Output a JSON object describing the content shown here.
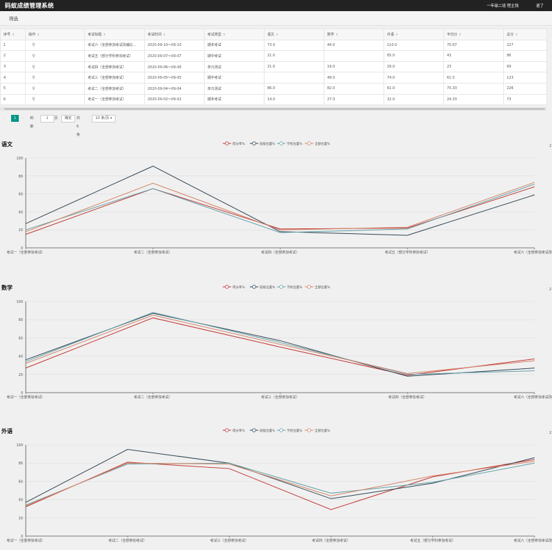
{
  "header": {
    "title": "码蚁成绩管理系统",
    "user": "一年级二班 程主钱",
    "logout": "退了"
  },
  "filter": {
    "label": "筛选"
  },
  "table": {
    "columns": [
      "序号",
      "操作",
      "考试标题",
      "考试时间",
      "考试类型",
      "语文",
      "数学",
      "外语",
      "平均分",
      "总分"
    ],
    "rows": [
      [
        "1",
        "",
        "考试六（全部参加考试改编比...",
        "2020-09-10～09-10",
        "期末考试",
        "73.0",
        "44.0",
        "110.0",
        "75.67",
        "227"
      ],
      [
        "2",
        "",
        "考试五（部分学科参加考试）",
        "2020-09-07～09-07",
        "期中考试",
        "21.0",
        "",
        "65.0",
        "43",
        "86"
      ],
      [
        "3",
        "",
        "考试四（全部参加考试）",
        "2020-09-06～09-06",
        "单元测试",
        "21.0",
        "19.0",
        "29.0",
        "23",
        "69"
      ],
      [
        "4",
        "",
        "考试三（全部参加考试）",
        "2020-09-05～09-05",
        "期中考试",
        "",
        "49.0",
        "74.0",
        "61.5",
        "123"
      ],
      [
        "5",
        "",
        "考试二（全部参加考试）",
        "2020-09-04～09-04",
        "单元测试",
        "86.0",
        "82.0",
        "61.0",
        "75.33",
        "226"
      ],
      [
        "6",
        "",
        "考试一（全部参加考试）",
        "2020-09-02～09-02",
        "期末考试",
        "14.0",
        "27.0",
        "32.0",
        "24.33",
        "73"
      ]
    ]
  },
  "pager": {
    "prev": "‹",
    "page": "1",
    "next": "›",
    "goto_label": "到第",
    "goto_value": "1",
    "page_unit": "页",
    "confirm": "确定",
    "total": "共 6 条",
    "page_size": "10 条/页"
  },
  "colors": {
    "score": "#c23531",
    "class": "#2f4554",
    "school": "#61a0a8",
    "all": "#d48265"
  },
  "charts_meta": {
    "corner_label": "2"
  },
  "chart_data": [
    {
      "type": "line",
      "title": "语文",
      "categories": [
        "考试一（全部参加考试）",
        "考试二（全部参加考试）",
        "考试四（全部参加考试）",
        "考试五（部分学科参加考试）",
        "考试六（全部参加考试改编比"
      ],
      "ylim": [
        0,
        100
      ],
      "yticks": [
        0,
        20,
        40,
        60,
        80,
        100
      ],
      "series": [
        {
          "name": "得分率%",
          "color": "#c23531",
          "values": [
            15,
            66,
            21,
            22,
            68
          ]
        },
        {
          "name": "班级位置%",
          "color": "#2f4554",
          "values": [
            27,
            91,
            18,
            14,
            59
          ]
        },
        {
          "name": "学校位置%",
          "color": "#61a0a8",
          "values": [
            20,
            66,
            17,
            21,
            71
          ]
        },
        {
          "name": "全部位置%",
          "color": "#d48265",
          "values": [
            18,
            72,
            20,
            23,
            73
          ]
        }
      ]
    },
    {
      "type": "line",
      "title": "数学",
      "categories": [
        "考试一（全部参加考试）",
        "考试二（全部参加考试）",
        "考试三（全部参加考试）",
        "考试四（全部参加考试）",
        "考试六（全部参加考试改编比"
      ],
      "ylim": [
        0,
        100
      ],
      "yticks": [
        0,
        20,
        40,
        60,
        80,
        100
      ],
      "series": [
        {
          "name": "得分率%",
          "color": "#c23531",
          "values": [
            27,
            82,
            50,
            19,
            37
          ]
        },
        {
          "name": "班级位置%",
          "color": "#2f4554",
          "values": [
            36,
            87,
            57,
            18,
            27
          ]
        },
        {
          "name": "学校位置%",
          "color": "#61a0a8",
          "values": [
            34,
            88,
            55,
            20,
            24
          ]
        },
        {
          "name": "全部位置%",
          "color": "#d48265",
          "values": [
            32,
            85,
            53,
            21,
            35
          ]
        }
      ]
    },
    {
      "type": "line",
      "title": "外语",
      "categories": [
        "考试一（全部参加考试）",
        "考试二（全部参加考试）",
        "考试三（全部参加考试）",
        "考试四（全部参加考试）",
        "考试五（部分学科参加考试）",
        "考试六（全部参加考试改编比"
      ],
      "ylim": [
        0,
        100
      ],
      "yticks": [
        0,
        20,
        40,
        60,
        80,
        100
      ],
      "series": [
        {
          "name": "得分率%",
          "color": "#c23531",
          "values": [
            32,
            81,
            74,
            29,
            65,
            84
          ]
        },
        {
          "name": "班级位置%",
          "color": "#2f4554",
          "values": [
            37,
            95,
            80,
            41,
            58,
            86
          ]
        },
        {
          "name": "学校位置%",
          "color": "#61a0a8",
          "values": [
            34,
            79,
            80,
            47,
            59,
            80
          ]
        },
        {
          "name": "全部位置%",
          "color": "#d48265",
          "values": [
            33,
            80,
            79,
            44,
            66,
            82
          ]
        }
      ]
    }
  ]
}
